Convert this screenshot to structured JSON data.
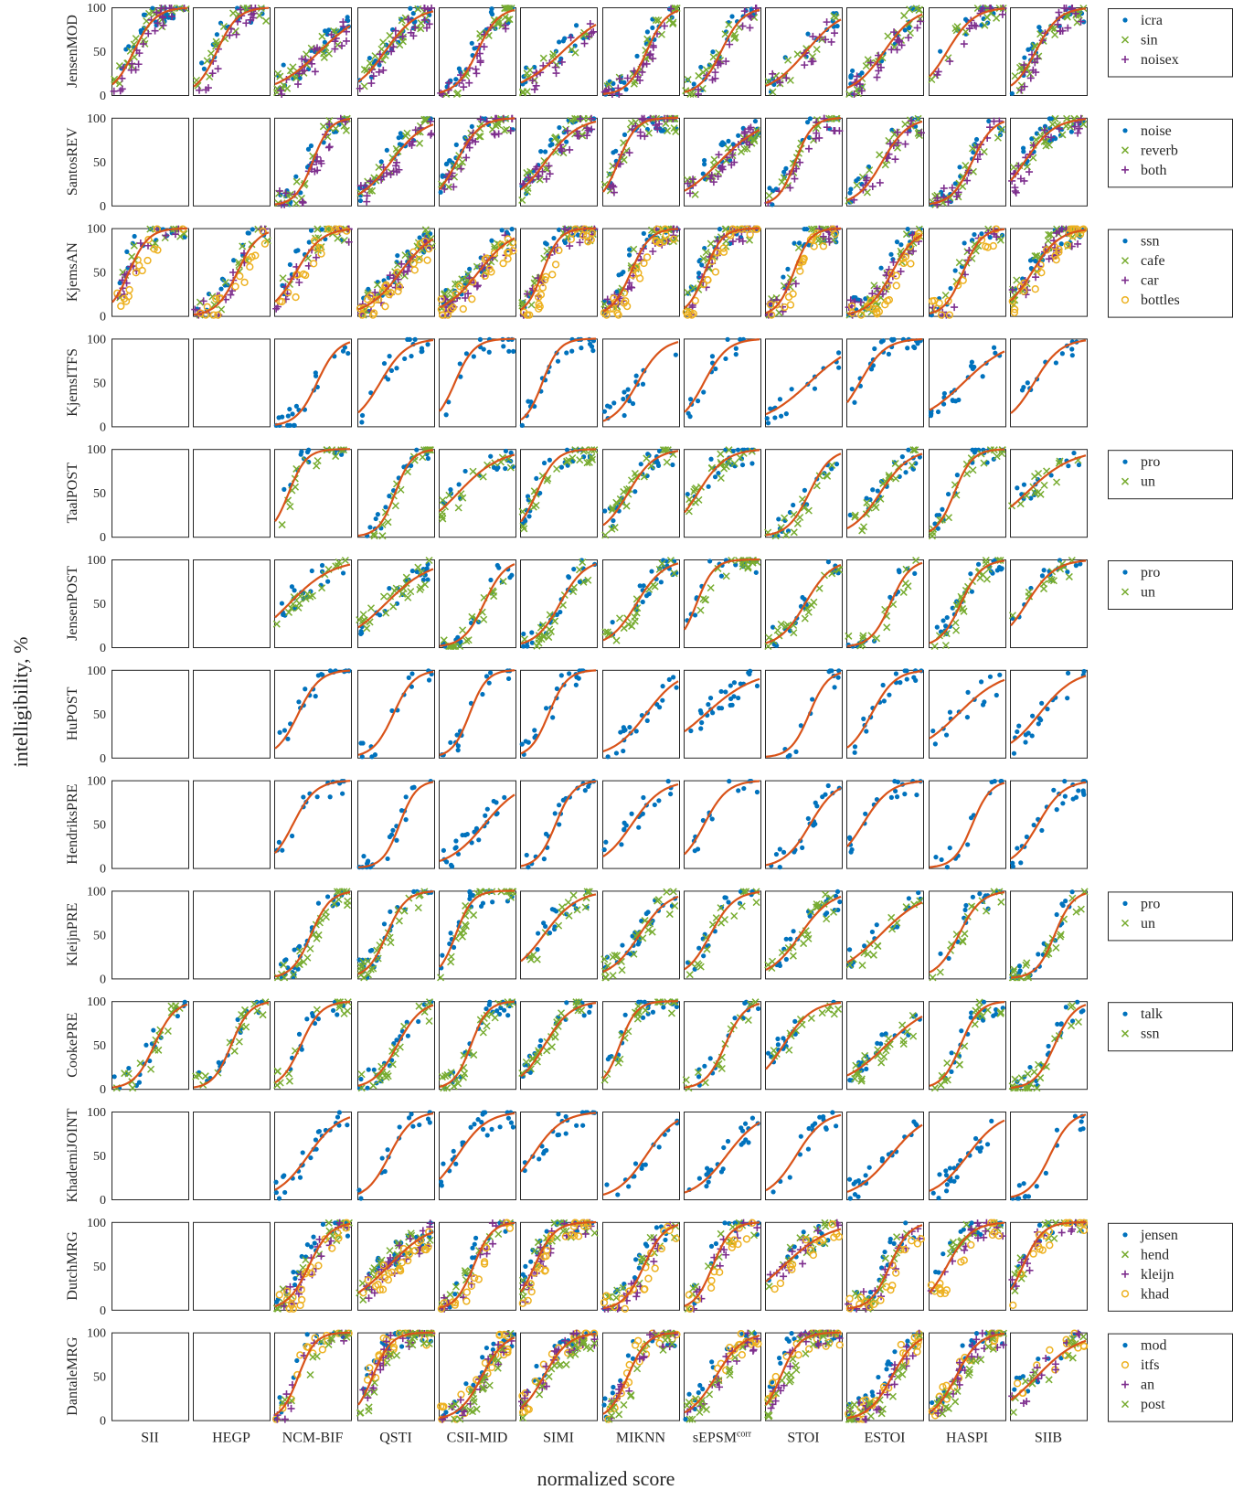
{
  "figure": {
    "ylabel": "intelligibility, %",
    "xlabel": "normalized score",
    "yticks": [
      "0",
      "50",
      "100"
    ],
    "columns": [
      "SII",
      "HEGP",
      "NCM-BIF",
      "QSTI",
      "CSII-MID",
      "SIMI",
      "MIKNN",
      "sEPSM",
      "STOI",
      "ESTOI",
      "HASPI",
      "SIIB"
    ],
    "column_superscript": {
      "sEPSM": "corr"
    },
    "colors": {
      "blue": "#0072BD",
      "green": "#77AC30",
      "purple": "#7E2F8E",
      "yellow": "#EDB120",
      "fit": "#D95319"
    }
  },
  "chart_data": {
    "type": "scatter",
    "xlim": [
      0,
      1
    ],
    "ylim": [
      0,
      100
    ],
    "grid": false,
    "legend_placement": "right of each row",
    "rows": [
      {
        "name": "JensenMOD",
        "empty_cols": [],
        "legend": [
          {
            "label": "icra",
            "marker": "dot",
            "color": "#0072BD"
          },
          {
            "label": "sin",
            "marker": "x",
            "color": "#77AC30"
          },
          {
            "label": "noisex",
            "marker": "plus",
            "color": "#7E2F8E"
          }
        ]
      },
      {
        "name": "SantosREV",
        "empty_cols": [
          0,
          1
        ],
        "legend": [
          {
            "label": "noise",
            "marker": "dot",
            "color": "#0072BD"
          },
          {
            "label": "reverb",
            "marker": "x",
            "color": "#77AC30"
          },
          {
            "label": "both",
            "marker": "plus",
            "color": "#7E2F8E"
          }
        ]
      },
      {
        "name": "KjemsAN",
        "empty_cols": [],
        "legend": [
          {
            "label": "ssn",
            "marker": "dot",
            "color": "#0072BD"
          },
          {
            "label": "cafe",
            "marker": "x",
            "color": "#77AC30"
          },
          {
            "label": "car",
            "marker": "plus",
            "color": "#7E2F8E"
          },
          {
            "label": "bottles",
            "marker": "o",
            "color": "#EDB120"
          }
        ]
      },
      {
        "name": "KjemsITFS",
        "empty_cols": [
          0,
          1
        ],
        "legend": []
      },
      {
        "name": "TaalPOST",
        "empty_cols": [
          0,
          1
        ],
        "legend": [
          {
            "label": "pro",
            "marker": "dot",
            "color": "#0072BD"
          },
          {
            "label": "un",
            "marker": "x",
            "color": "#77AC30"
          }
        ]
      },
      {
        "name": "JensenPOST",
        "empty_cols": [
          0,
          1
        ],
        "legend": [
          {
            "label": "pro",
            "marker": "dot",
            "color": "#0072BD"
          },
          {
            "label": "un",
            "marker": "x",
            "color": "#77AC30"
          }
        ]
      },
      {
        "name": "HuPOST",
        "empty_cols": [
          0,
          1
        ],
        "legend": []
      },
      {
        "name": "HendriksPRE",
        "empty_cols": [
          0,
          1
        ],
        "legend": []
      },
      {
        "name": "KleijnPRE",
        "empty_cols": [
          0,
          1
        ],
        "legend": [
          {
            "label": "pro",
            "marker": "dot",
            "color": "#0072BD"
          },
          {
            "label": "un",
            "marker": "x",
            "color": "#77AC30"
          }
        ]
      },
      {
        "name": "CookePRE",
        "empty_cols": [],
        "legend": [
          {
            "label": "talk",
            "marker": "dot",
            "color": "#0072BD"
          },
          {
            "label": "ssn",
            "marker": "x",
            "color": "#77AC30"
          }
        ]
      },
      {
        "name": "KhademiJOINT",
        "empty_cols": [
          0,
          1
        ],
        "legend": []
      },
      {
        "name": "DutchMRG",
        "empty_cols": [
          0,
          1
        ],
        "legend": [
          {
            "label": "jensen",
            "marker": "dot",
            "color": "#0072BD"
          },
          {
            "label": "hend",
            "marker": "x",
            "color": "#77AC30"
          },
          {
            "label": "kleijn",
            "marker": "plus",
            "color": "#7E2F8E"
          },
          {
            "label": "khad",
            "marker": "o",
            "color": "#EDB120"
          }
        ]
      },
      {
        "name": "DantaleMRG",
        "empty_cols": [
          0,
          1
        ],
        "legend": [
          {
            "label": "mod",
            "marker": "dot",
            "color": "#0072BD"
          },
          {
            "label": "itfs",
            "marker": "o",
            "color": "#EDB120"
          },
          {
            "label": "an",
            "marker": "plus",
            "color": "#7E2F8E"
          },
          {
            "label": "post",
            "marker": "x",
            "color": "#77AC30"
          }
        ]
      }
    ]
  }
}
